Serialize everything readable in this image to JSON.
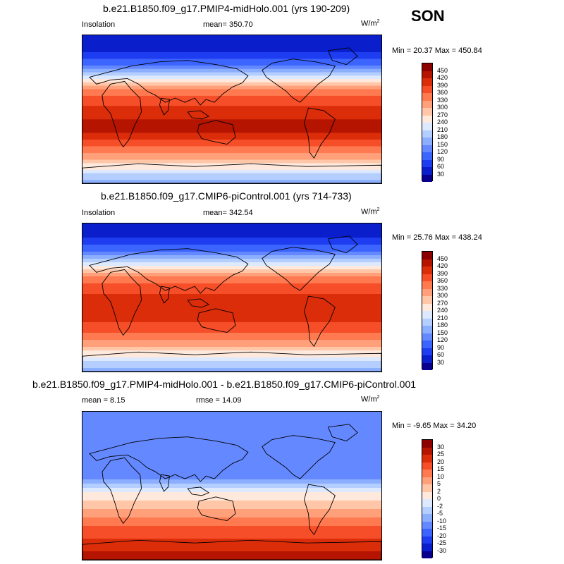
{
  "season": "SON",
  "units": "W/m",
  "units_sup": "2",
  "panels": [
    {
      "title": "b.e21.B1850.f09_g17.PMIP4-midHolo.001 (yrs 190-209)",
      "left_label": "Insolation",
      "center_label": "mean= 350.70",
      "minmax": "Min =  20.37 Max = 450.84",
      "colorbar_labels": [
        "450",
        "420",
        "390",
        "360",
        "330",
        "300",
        "270",
        "240",
        "210",
        "180",
        "150",
        "120",
        "90",
        "60",
        "30"
      ],
      "band_levels": [
        0.55,
        0.72,
        0.88,
        1,
        1,
        2,
        2,
        3,
        3,
        4,
        5,
        6,
        7,
        8,
        9,
        10,
        11,
        11,
        12,
        12,
        12,
        13,
        13,
        13,
        13,
        14,
        14,
        14,
        14,
        13,
        13,
        12,
        12,
        11,
        11,
        10,
        10,
        9,
        8,
        8,
        7,
        6,
        6,
        5
      ]
    },
    {
      "title": "b.e21.B1850.f09_g17.CMIP6-piControl.001 (yrs 714-733)",
      "left_label": "Insolation",
      "center_label": "mean= 342.54",
      "minmax": "Min =  25.76 Max = 438.24",
      "colorbar_labels": [
        "450",
        "420",
        "390",
        "360",
        "330",
        "300",
        "270",
        "240",
        "210",
        "180",
        "150",
        "120",
        "90",
        "60",
        "30"
      ],
      "band_levels": [
        0.6,
        0.8,
        1,
        1,
        2,
        2,
        3,
        3,
        4,
        5,
        6,
        7,
        8,
        9,
        10,
        11,
        11,
        12,
        12,
        12,
        13,
        13,
        13,
        13,
        13,
        13,
        13,
        13,
        12,
        12,
        12,
        11,
        11,
        10,
        10,
        9,
        8,
        8,
        7,
        6,
        6,
        5
      ]
    },
    {
      "title": "b.e21.B1850.f09_g17.PMIP4-midHolo.001 - b.e21.B1850.f09_g17.CMIP6-piControl.001",
      "left_label": "mean =   8.15",
      "center_label": "rmse =  14.09",
      "minmax": "Min =  -9.65 Max =  34.20",
      "colorbar_labels": [
        "30",
        "25",
        "20",
        "15",
        "10",
        "5",
        "2",
        "0",
        "-2",
        "-5",
        "-10",
        "-15",
        "-20",
        "-25",
        "-30"
      ],
      "band_levels": [
        4,
        4,
        4,
        4,
        4,
        4,
        4,
        4,
        4,
        4,
        4,
        4,
        4,
        4,
        4,
        4,
        5,
        6,
        7,
        8,
        8,
        9,
        9,
        10,
        10,
        11,
        11,
        12,
        12,
        12,
        13,
        13,
        13,
        14,
        14
      ]
    }
  ],
  "palette": [
    "#08008c",
    "#0a1ecc",
    "#1e3cf0",
    "#3c64ff",
    "#6488ff",
    "#8caeff",
    "#b4ceff",
    "#dce9ff",
    "#ffe8dc",
    "#ffc6a8",
    "#ffa07a",
    "#ff7a50",
    "#f54e28",
    "#dc2d0a",
    "#b41400",
    "#8c0000"
  ]
}
